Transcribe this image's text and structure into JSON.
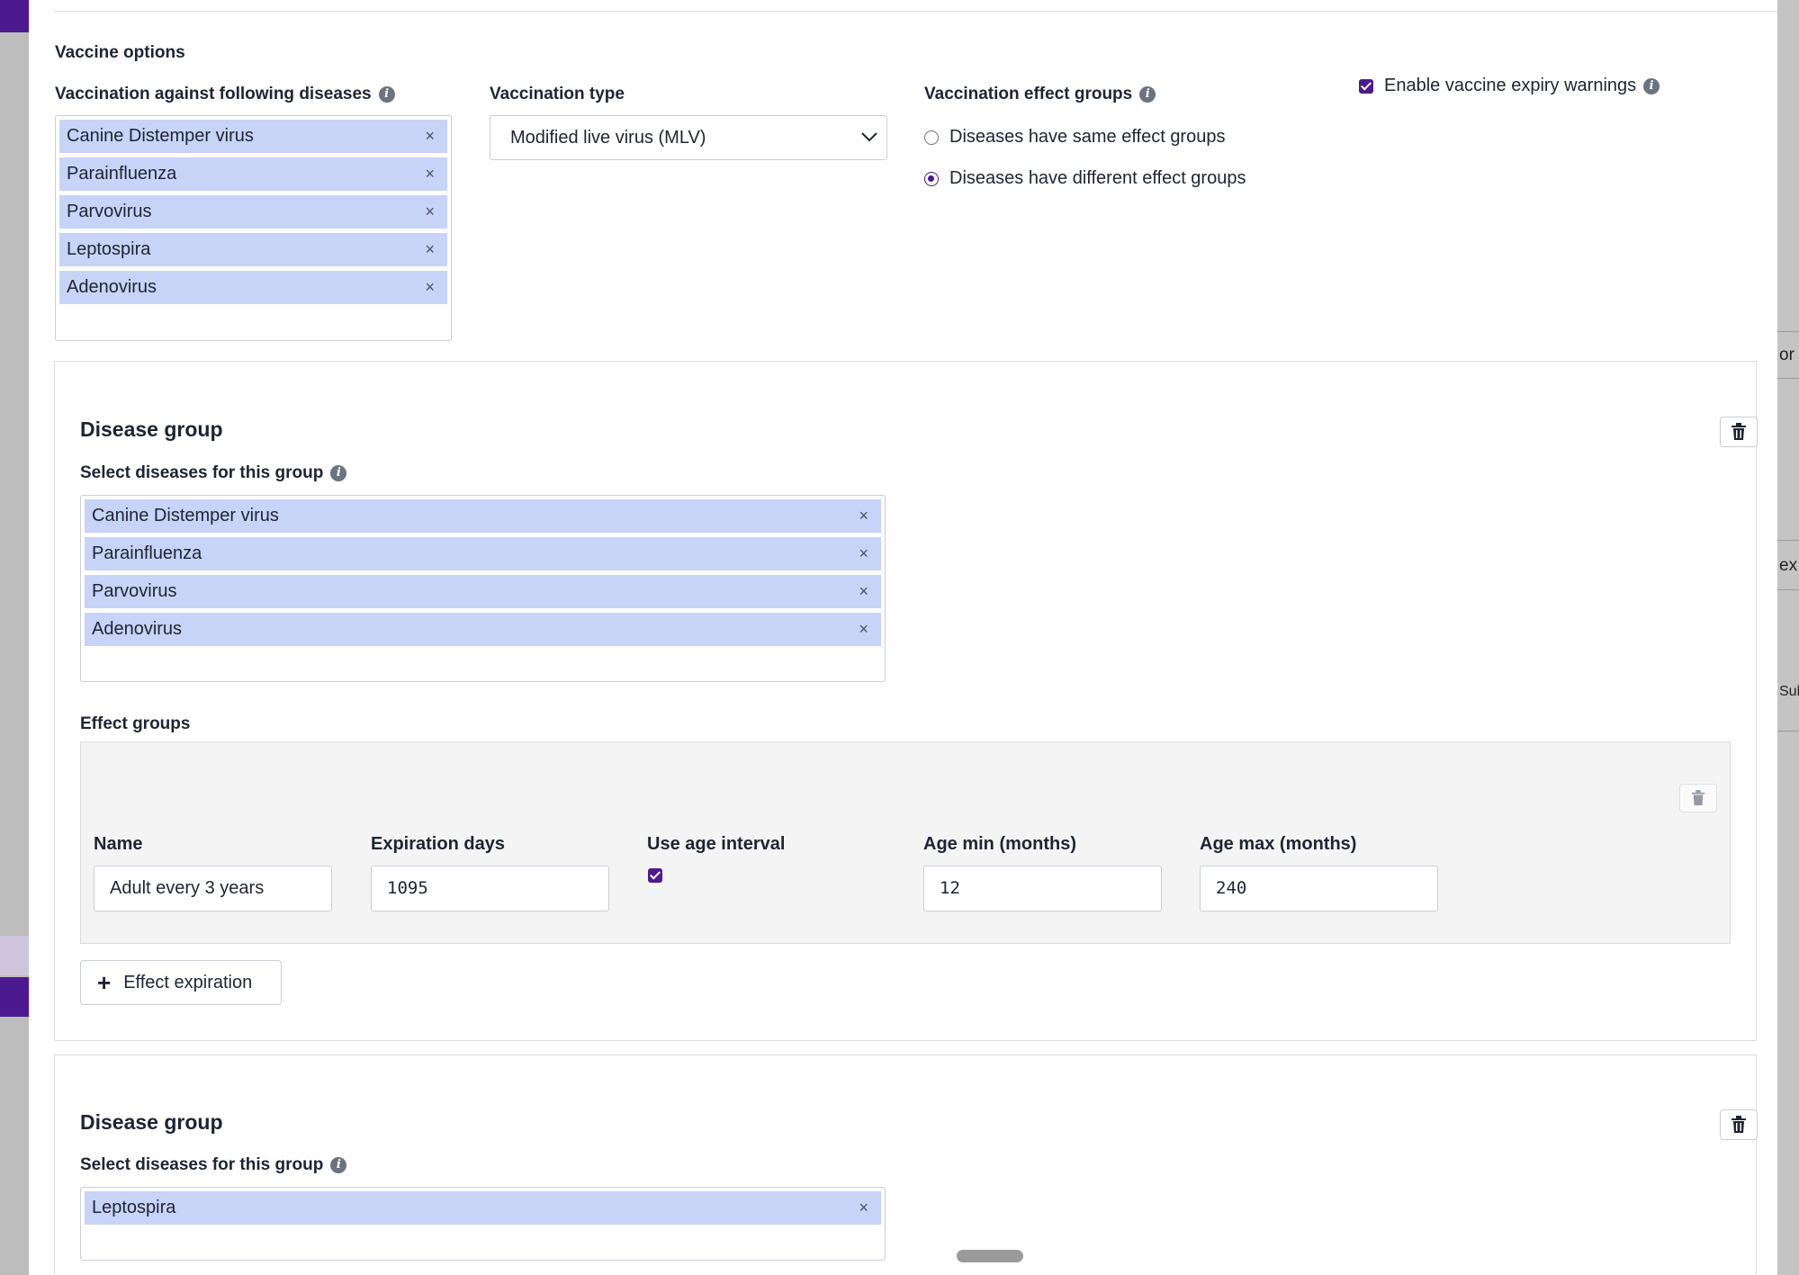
{
  "vaccine_options": {
    "section_title": "Vaccine options",
    "diseases_label": "Vaccination against following diseases",
    "diseases": [
      "Canine Distemper virus",
      "Parainfluenza",
      "Parvovirus",
      "Leptospira",
      "Adenovirus"
    ],
    "remove_symbol": "×",
    "type_label": "Vaccination type",
    "type_value": "Modified live virus (MLV)",
    "effect_groups_label": "Vaccination effect groups",
    "radio_same": "Diseases have same effect groups",
    "radio_different": "Diseases have different effect groups",
    "selected_radio": "different",
    "expiry_label": "Enable vaccine expiry warnings",
    "expiry_checked": true
  },
  "disease_groups": [
    {
      "title": "Disease group",
      "select_label": "Select diseases for this group",
      "diseases": [
        "Canine Distemper virus",
        "Parainfluenza",
        "Parvovirus",
        "Adenovirus"
      ],
      "effect_groups_label": "Effect groups",
      "effect": {
        "name_label": "Name",
        "name_value": "Adult every 3 years",
        "expiration_label": "Expiration days",
        "expiration_value": "1095",
        "age_interval_label": "Use age interval",
        "age_interval_checked": true,
        "age_min_label": "Age min (months)",
        "age_min_value": "12",
        "age_max_label": "Age max (months)",
        "age_max_value": "240"
      },
      "add_button_label": "Effect expiration"
    },
    {
      "title": "Disease group",
      "select_label": "Select diseases for this group",
      "diseases": [
        "Leptospira"
      ]
    }
  ],
  "background_fragments": [
    "or",
    "ex",
    "Sul"
  ],
  "colors": {
    "accent": "#4b1a8f",
    "tag_bg": "#c7d4f7",
    "panel_bg": "#f4f4f4"
  },
  "icons": [
    "info-icon",
    "remove-icon",
    "chevron-down-icon",
    "trash-icon",
    "plus-icon",
    "checkbox-checked-icon",
    "radio-icon"
  ]
}
